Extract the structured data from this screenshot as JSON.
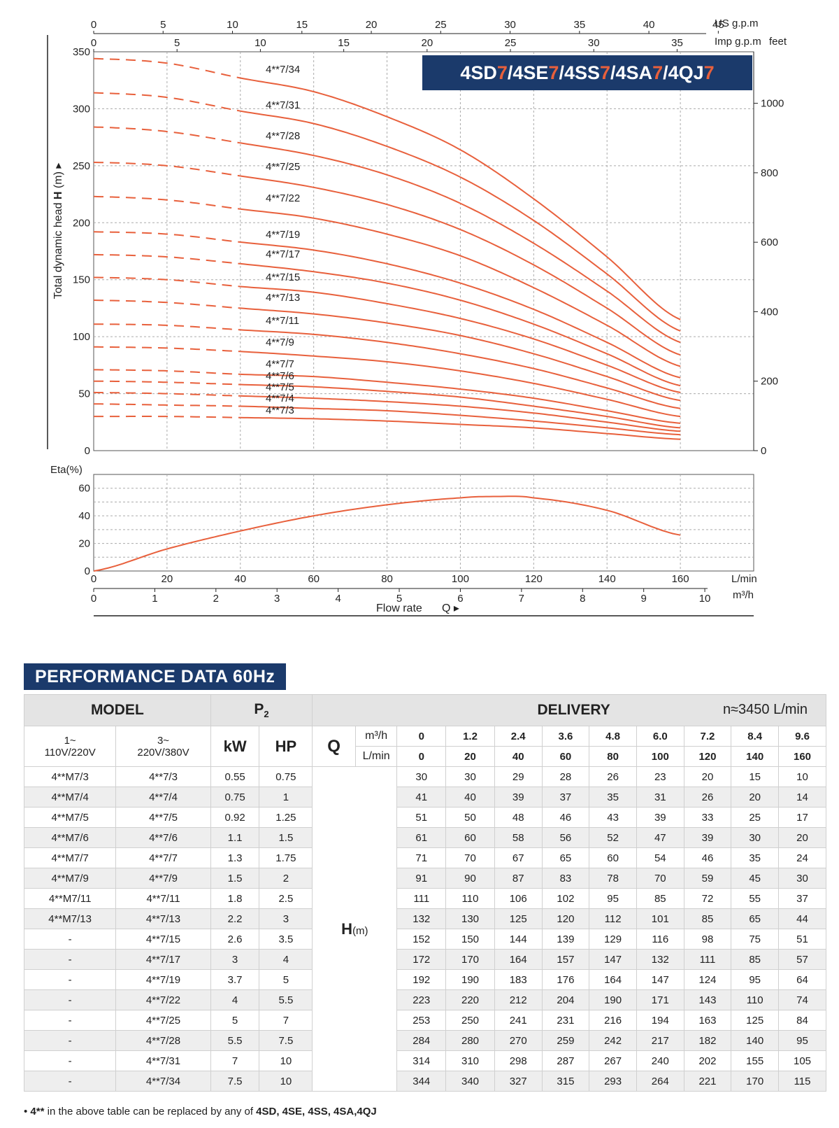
{
  "chart_data": [
    {
      "type": "line",
      "title": "4SD7/4SE7/4SS7/4SA7/4QJ7",
      "title_parts": [
        "4SD",
        "7",
        "/4SE",
        "7",
        "/4SS",
        "7",
        "/4SA",
        "7",
        "/4QJ",
        "7"
      ],
      "xlabel": "Flow rate",
      "xlabel_symbol": "Q",
      "xunit_lmin": "L/min",
      "xunit_m3h": "m³/h",
      "xunit_usgpm": "US g.p.m",
      "xunit_impgpm": "Imp g.p.m",
      "ylabel": "Total dynamic head",
      "ylabel_symbol": "H",
      "ylabel_unit": "(m)",
      "ylabel_right": "feet",
      "xlim": [
        0,
        180
      ],
      "ylim": [
        0,
        350
      ],
      "x_ticks_lmin": [
        0,
        20,
        40,
        60,
        80,
        100,
        120,
        140,
        160
      ],
      "x_ticks_m3h": [
        0,
        1,
        2,
        3,
        4,
        5,
        6,
        7,
        8,
        9,
        10
      ],
      "x_ticks_usgpm": [
        0,
        5,
        10,
        15,
        20,
        25,
        30,
        35,
        40,
        45
      ],
      "x_ticks_impgpm": [
        0,
        5,
        10,
        15,
        20,
        25,
        30,
        35
      ],
      "y_ticks": [
        0,
        50,
        100,
        150,
        200,
        250,
        300,
        350
      ],
      "y_ticks_feet": [
        0,
        200,
        400,
        600,
        800,
        1000
      ],
      "grid": true,
      "dashed_until_lmin": 40,
      "x": [
        0,
        20,
        40,
        60,
        80,
        100,
        120,
        140,
        160
      ],
      "series": [
        {
          "name": "4**7/34",
          "values": [
            344,
            340,
            327,
            315,
            293,
            264,
            221,
            170,
            115
          ]
        },
        {
          "name": "4**7/31",
          "values": [
            314,
            310,
            298,
            287,
            267,
            240,
            202,
            155,
            105
          ]
        },
        {
          "name": "4**7/28",
          "values": [
            284,
            280,
            270,
            259,
            242,
            217,
            182,
            140,
            95
          ]
        },
        {
          "name": "4**7/25",
          "values": [
            253,
            250,
            241,
            231,
            216,
            194,
            163,
            125,
            84
          ]
        },
        {
          "name": "4**7/22",
          "values": [
            223,
            220,
            212,
            204,
            190,
            171,
            143,
            110,
            74
          ]
        },
        {
          "name": "4**7/19",
          "values": [
            192,
            190,
            183,
            176,
            164,
            147,
            124,
            95,
            64
          ]
        },
        {
          "name": "4**7/17",
          "values": [
            172,
            170,
            164,
            157,
            147,
            132,
            111,
            85,
            57
          ]
        },
        {
          "name": "4**7/15",
          "values": [
            152,
            150,
            144,
            139,
            129,
            116,
            98,
            75,
            51
          ]
        },
        {
          "name": "4**7/13",
          "values": [
            132,
            130,
            125,
            120,
            112,
            101,
            85,
            65,
            44
          ]
        },
        {
          "name": "4**7/11",
          "values": [
            111,
            110,
            106,
            102,
            95,
            85,
            72,
            55,
            37
          ]
        },
        {
          "name": "4**7/9",
          "values": [
            91,
            90,
            87,
            83,
            78,
            70,
            59,
            45,
            30
          ]
        },
        {
          "name": "4**7/7",
          "values": [
            71,
            70,
            67,
            65,
            60,
            54,
            46,
            35,
            24
          ]
        },
        {
          "name": "4**7/6",
          "values": [
            61,
            60,
            58,
            56,
            52,
            47,
            39,
            30,
            20
          ]
        },
        {
          "name": "4**7/5",
          "values": [
            51,
            50,
            48,
            46,
            43,
            39,
            33,
            25,
            17
          ]
        },
        {
          "name": "4**7/4",
          "values": [
            41,
            40,
            39,
            37,
            35,
            31,
            26,
            20,
            14
          ]
        },
        {
          "name": "4**7/3",
          "values": [
            30,
            30,
            29,
            28,
            26,
            23,
            20,
            15,
            10
          ]
        }
      ],
      "line_color": "#e8603c",
      "title_box_color": "#1b3a6b"
    },
    {
      "type": "line",
      "ylabel": "Eta(%)",
      "ylim": [
        0,
        70
      ],
      "y_ticks": [
        0,
        20,
        40,
        60
      ],
      "xlim": [
        0,
        180
      ],
      "x": [
        0,
        20,
        40,
        60,
        80,
        100,
        110,
        120,
        140,
        160
      ],
      "values": [
        0,
        16,
        29,
        40,
        48,
        53,
        54,
        53,
        44,
        26
      ],
      "line_color": "#e8603c"
    }
  ],
  "table": {
    "section_title": "PERFORMANCE DATA 60Hz",
    "model_header": "MODEL",
    "p2_header": "P",
    "p2_sub": "2",
    "delivery_header": "DELIVERY",
    "speed": "n≈3450 L/min",
    "col_1ph_a": "1~",
    "col_1ph_b": "110V/220V",
    "col_3ph_a": "3~",
    "col_3ph_b": "220V/380V",
    "kw": "kW",
    "hp": "HP",
    "q": "Q",
    "unit_m3h": "m³/h",
    "unit_lmin": "L/min",
    "hm": "H",
    "hm_unit": "(m)",
    "flows_m3h": [
      "0",
      "1.2",
      "2.4",
      "3.6",
      "4.8",
      "6.0",
      "7.2",
      "8.4",
      "9.6"
    ],
    "flows_lmin": [
      "0",
      "20",
      "40",
      "60",
      "80",
      "100",
      "120",
      "140",
      "160"
    ],
    "rows": [
      {
        "m1": "4**M7/3",
        "m3": "4**7/3",
        "kw": "0.55",
        "hp": "0.75",
        "h": [
          "30",
          "30",
          "29",
          "28",
          "26",
          "23",
          "20",
          "15",
          "10"
        ]
      },
      {
        "m1": "4**M7/4",
        "m3": "4**7/4",
        "kw": "0.75",
        "hp": "1",
        "h": [
          "41",
          "40",
          "39",
          "37",
          "35",
          "31",
          "26",
          "20",
          "14"
        ]
      },
      {
        "m1": "4**M7/5",
        "m3": "4**7/5",
        "kw": "0.92",
        "hp": "1.25",
        "h": [
          "51",
          "50",
          "48",
          "46",
          "43",
          "39",
          "33",
          "25",
          "17"
        ]
      },
      {
        "m1": "4**M7/6",
        "m3": "4**7/6",
        "kw": "1.1",
        "hp": "1.5",
        "h": [
          "61",
          "60",
          "58",
          "56",
          "52",
          "47",
          "39",
          "30",
          "20"
        ]
      },
      {
        "m1": "4**M7/7",
        "m3": "4**7/7",
        "kw": "1.3",
        "hp": "1.75",
        "h": [
          "71",
          "70",
          "67",
          "65",
          "60",
          "54",
          "46",
          "35",
          "24"
        ]
      },
      {
        "m1": "4**M7/9",
        "m3": "4**7/9",
        "kw": "1.5",
        "hp": "2",
        "h": [
          "91",
          "90",
          "87",
          "83",
          "78",
          "70",
          "59",
          "45",
          "30"
        ]
      },
      {
        "m1": "4**M7/11",
        "m3": "4**7/11",
        "kw": "1.8",
        "hp": "2.5",
        "h": [
          "111",
          "110",
          "106",
          "102",
          "95",
          "85",
          "72",
          "55",
          "37"
        ]
      },
      {
        "m1": "4**M7/13",
        "m3": "4**7/13",
        "kw": "2.2",
        "hp": "3",
        "h": [
          "132",
          "130",
          "125",
          "120",
          "112",
          "101",
          "85",
          "65",
          "44"
        ]
      },
      {
        "m1": "-",
        "m3": "4**7/15",
        "kw": "2.6",
        "hp": "3.5",
        "h": [
          "152",
          "150",
          "144",
          "139",
          "129",
          "116",
          "98",
          "75",
          "51"
        ]
      },
      {
        "m1": "-",
        "m3": "4**7/17",
        "kw": "3",
        "hp": "4",
        "h": [
          "172",
          "170",
          "164",
          "157",
          "147",
          "132",
          "111",
          "85",
          "57"
        ]
      },
      {
        "m1": "-",
        "m3": "4**7/19",
        "kw": "3.7",
        "hp": "5",
        "h": [
          "192",
          "190",
          "183",
          "176",
          "164",
          "147",
          "124",
          "95",
          "64"
        ]
      },
      {
        "m1": "-",
        "m3": "4**7/22",
        "kw": "4",
        "hp": "5.5",
        "h": [
          "223",
          "220",
          "212",
          "204",
          "190",
          "171",
          "143",
          "110",
          "74"
        ]
      },
      {
        "m1": "-",
        "m3": "4**7/25",
        "kw": "5",
        "hp": "7",
        "h": [
          "253",
          "250",
          "241",
          "231",
          "216",
          "194",
          "163",
          "125",
          "84"
        ]
      },
      {
        "m1": "-",
        "m3": "4**7/28",
        "kw": "5.5",
        "hp": "7.5",
        "h": [
          "284",
          "280",
          "270",
          "259",
          "242",
          "217",
          "182",
          "140",
          "95"
        ]
      },
      {
        "m1": "-",
        "m3": "4**7/31",
        "kw": "7",
        "hp": "10",
        "h": [
          "314",
          "310",
          "298",
          "287",
          "267",
          "240",
          "202",
          "155",
          "105"
        ]
      },
      {
        "m1": "-",
        "m3": "4**7/34",
        "kw": "7.5",
        "hp": "10",
        "h": [
          "344",
          "340",
          "327",
          "315",
          "293",
          "264",
          "221",
          "170",
          "115"
        ]
      }
    ],
    "footnote_pre": "4**",
    "footnote_mid": " in the above table can be replaced by any of ",
    "footnote_models": "4SD, 4SE, 4SS, 4SA,4QJ"
  }
}
